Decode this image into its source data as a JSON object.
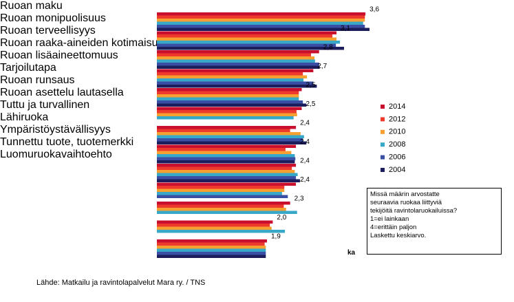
{
  "chart_data": {
    "type": "bar",
    "orientation": "horizontal",
    "categories": [
      "Ruoan maku",
      "Ruoan monipuolisuus",
      "Ruoan terveellisyys",
      "Ruoan raaka-aineiden\nkotimaisuus",
      "Ruoan lisäaineettomuus",
      "Tarjoilutapa",
      "Ruoan runsaus",
      "Ruoan asettelu lautasella",
      "Tuttu ja turvallinen",
      "Lähiruoka",
      "Ympäristöystävällisyys",
      "Tunnettu tuote, tuotemerkki",
      "Luomuruokavaihtoehto"
    ],
    "series": [
      {
        "name": "2014",
        "color": "#c8102e",
        "values": [
          3.6,
          3.1,
          2.8,
          2.7,
          2.5,
          2.5,
          2.4,
          2.4,
          2.4,
          2.4,
          2.3,
          2.0,
          1.9
        ],
        "value_labels": [
          "3,6",
          "3,1",
          "2,8",
          "2,7",
          "2,5",
          "2,5",
          "2,4",
          "2,4",
          "2,4",
          "2,4",
          "2,3",
          "2,0",
          "1,9"
        ]
      },
      {
        "name": "2012",
        "color": "#ee3a2c",
        "values": [
          3.59,
          3.03,
          2.66,
          2.52,
          2.45,
          2.41,
          2.3,
          2.22,
          2.33,
          2.2,
          2.19,
          1.95,
          1.86
        ]
      },
      {
        "name": "2010",
        "color": "#f5a030",
        "values": [
          3.59,
          3.1,
          2.72,
          2.59,
          2.45,
          2.42,
          2.48,
          2.32,
          2.38,
          2.2,
          2.23,
          1.98,
          1.88
        ]
      },
      {
        "name": "2008",
        "color": "#38a8c8",
        "values": [
          3.56,
          3.16,
          2.73,
          2.53,
          2.45,
          2.36,
          2.54,
          2.38,
          2.43,
          2.16,
          2.42,
          2.21,
          1.88
        ]
      },
      {
        "name": "2006",
        "color": "#3a4fa3",
        "values": [
          3.59,
          3.09,
          2.8,
          2.7,
          2.52,
          null,
          2.52,
          2.39,
          2.4,
          2.26,
          null,
          null,
          1.88
        ]
      },
      {
        "name": "2004",
        "color": "#1b1d5c",
        "values": [
          3.67,
          3.23,
          2.81,
          2.76,
          2.58,
          null,
          2.58,
          2.38,
          2.47,
          null,
          null,
          null,
          1.88
        ]
      }
    ],
    "xlim": [
      0,
      4
    ],
    "axis_note": "ka",
    "note_lines": [
      "Missä määrin arvostatte",
      "seuraavia ruokaa liittyviä",
      "tekijöitä ravintolaruokailuissa?",
      "1=ei lainkaan",
      "4=erittäin paljon",
      "Laskettu keskiarvo."
    ],
    "source": "Lähde: Matkailu  ja ravintolapalvelut Mara ry. / TNS"
  }
}
